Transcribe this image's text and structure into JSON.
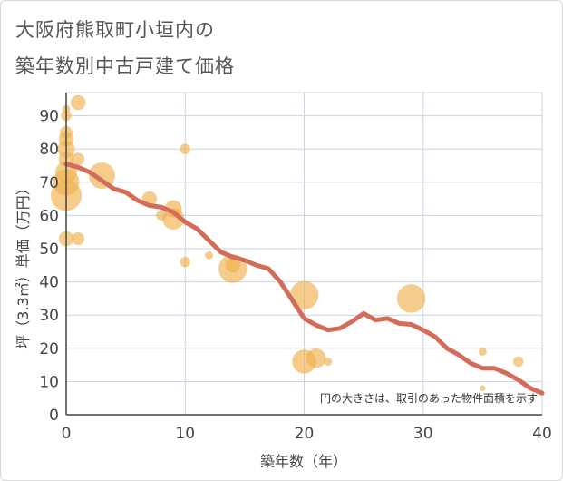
{
  "title_line1": "大阪府熊取町小垣内の",
  "title_line2": "築年数別中古戸建て価格",
  "colors": {
    "bubble": "#f0b14d",
    "line": "#d36c58",
    "grid": "#c8d3e3",
    "axis": "#444444"
  },
  "chart_data": {
    "type": "scatter",
    "title": "大阪府熊取町小垣内の築年数別中古戸建て価格",
    "xlabel": "築年数（年）",
    "ylabel": "坪（3.3㎡）単価（万円）",
    "xlim": [
      0,
      40
    ],
    "ylim": [
      0,
      97
    ],
    "xticks": [
      0,
      10,
      20,
      30,
      40
    ],
    "yticks": [
      0,
      10,
      20,
      30,
      40,
      50,
      60,
      70,
      80,
      90
    ],
    "note": "円の大きさは、取引のあった物件面積を示す",
    "scatter": [
      {
        "x": 0,
        "y": 92,
        "s": 2
      },
      {
        "x": 0,
        "y": 90,
        "s": 3
      },
      {
        "x": 0,
        "y": 85,
        "s": 4
      },
      {
        "x": 0,
        "y": 83,
        "s": 5
      },
      {
        "x": 0,
        "y": 80,
        "s": 6
      },
      {
        "x": 0,
        "y": 77,
        "s": 5
      },
      {
        "x": 0,
        "y": 73,
        "s": 8
      },
      {
        "x": 0,
        "y": 70,
        "s": 10
      },
      {
        "x": 0,
        "y": 66,
        "s": 12
      },
      {
        "x": 0,
        "y": 53,
        "s": 5
      },
      {
        "x": 1,
        "y": 94,
        "s": 5
      },
      {
        "x": 1,
        "y": 77,
        "s": 4
      },
      {
        "x": 1,
        "y": 53,
        "s": 4
      },
      {
        "x": 3,
        "y": 72,
        "s": 10
      },
      {
        "x": 7,
        "y": 65,
        "s": 5
      },
      {
        "x": 8,
        "y": 60,
        "s": 3
      },
      {
        "x": 9,
        "y": 62,
        "s": 6
      },
      {
        "x": 9,
        "y": 59,
        "s": 8
      },
      {
        "x": 10,
        "y": 80,
        "s": 3
      },
      {
        "x": 10,
        "y": 46,
        "s": 3
      },
      {
        "x": 12,
        "y": 48,
        "s": 2
      },
      {
        "x": 14,
        "y": 44,
        "s": 11
      },
      {
        "x": 14,
        "y": 45,
        "s": 5
      },
      {
        "x": 20,
        "y": 36,
        "s": 11
      },
      {
        "x": 20,
        "y": 16,
        "s": 9
      },
      {
        "x": 21,
        "y": 17,
        "s": 7
      },
      {
        "x": 22,
        "y": 16,
        "s": 2
      },
      {
        "x": 29,
        "y": 35,
        "s": 11
      },
      {
        "x": 35,
        "y": 19,
        "s": 2
      },
      {
        "x": 35,
        "y": 8,
        "s": 1
      },
      {
        "x": 38,
        "y": 16,
        "s": 3
      }
    ],
    "trend": {
      "x": [
        0,
        1,
        2,
        3,
        4,
        5,
        6,
        7,
        8,
        9,
        10,
        11,
        12,
        13,
        14,
        15,
        16,
        17,
        18,
        19,
        20,
        21,
        22,
        23,
        24,
        25,
        26,
        27,
        28,
        29,
        30,
        31,
        32,
        33,
        34,
        35,
        36,
        37,
        38,
        39,
        40
      ],
      "y": [
        75.5,
        74.5,
        73,
        70.5,
        68,
        67,
        64.5,
        63,
        62.5,
        61,
        58,
        56,
        52.5,
        49,
        47.5,
        46.5,
        45,
        44,
        40,
        34.5,
        29,
        27,
        25.5,
        26,
        28,
        30.5,
        28.5,
        29,
        27.5,
        27.2,
        25.5,
        23.5,
        20,
        18,
        15.5,
        14,
        14,
        12.5,
        10.5,
        8,
        6.5
      ]
    }
  }
}
